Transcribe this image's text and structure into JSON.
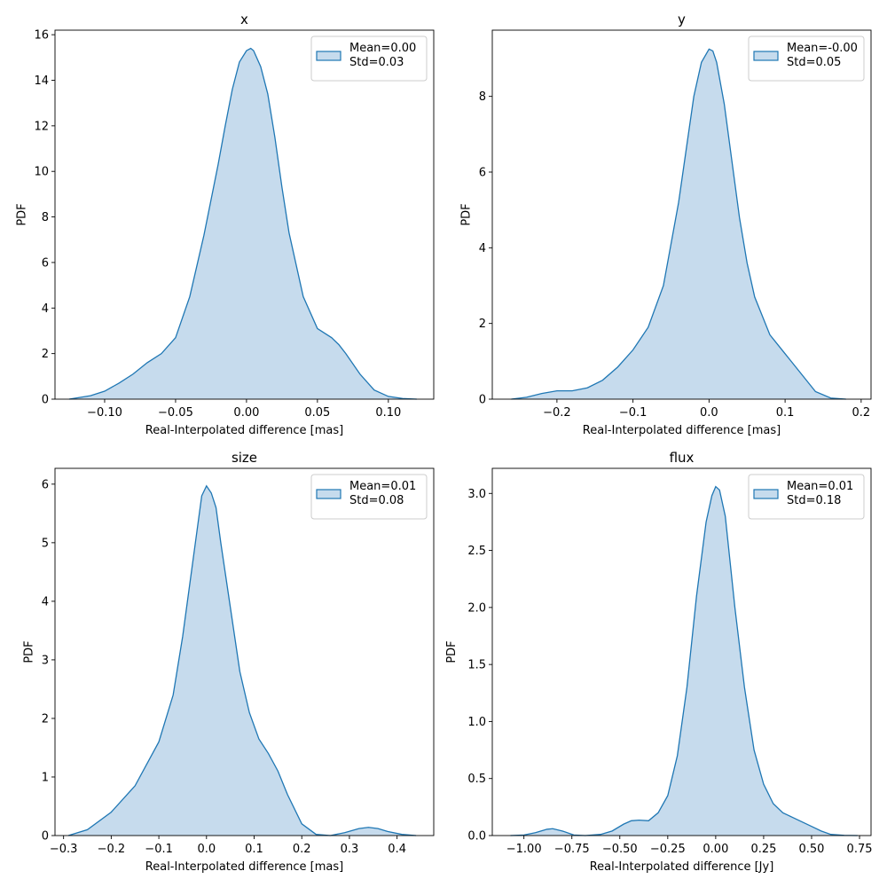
{
  "colors": {
    "line": "#1f77b4",
    "fill": "#c6dbed",
    "axes": "#000000"
  },
  "chart_data": [
    {
      "type": "area",
      "title": "x",
      "xlabel": "Real-Interpolated difference [mas]",
      "ylabel": "PDF",
      "xlim": [
        -0.135,
        0.132
      ],
      "ylim": [
        0,
        16.2
      ],
      "xticks": [
        -0.1,
        -0.05,
        0.0,
        0.05,
        0.1
      ],
      "xtick_labels": [
        "−0.10",
        "−0.05",
        "0.00",
        "0.05",
        "0.10"
      ],
      "yticks": [
        0,
        2,
        4,
        6,
        8,
        10,
        12,
        14,
        16
      ],
      "ytick_labels": [
        "0",
        "2",
        "4",
        "6",
        "8",
        "10",
        "12",
        "14",
        "16"
      ],
      "legend": {
        "position": "upper-right",
        "lines": [
          "Mean=0.00",
          "Std=0.03"
        ]
      },
      "series": [
        {
          "x": [
            -0.125,
            -0.11,
            -0.1,
            -0.09,
            -0.08,
            -0.07,
            -0.06,
            -0.05,
            -0.04,
            -0.03,
            -0.02,
            -0.015,
            -0.01,
            -0.005,
            0.0,
            0.003,
            0.005,
            0.01,
            0.015,
            0.02,
            0.025,
            0.03,
            0.04,
            0.05,
            0.06,
            0.065,
            0.07,
            0.08,
            0.09,
            0.1,
            0.11,
            0.12
          ],
          "y": [
            0.0,
            0.15,
            0.35,
            0.7,
            1.1,
            1.6,
            2.0,
            2.7,
            4.5,
            7.2,
            10.3,
            12.0,
            13.6,
            14.8,
            15.3,
            15.4,
            15.3,
            14.6,
            13.4,
            11.5,
            9.3,
            7.3,
            4.5,
            3.1,
            2.7,
            2.4,
            2.0,
            1.1,
            0.4,
            0.12,
            0.03,
            0.0
          ]
        }
      ]
    },
    {
      "type": "area",
      "title": "y",
      "xlabel": "Real-Interpolated difference [mas]",
      "ylabel": "PDF",
      "xlim": [
        -0.285,
        0.213
      ],
      "ylim": [
        0,
        9.75
      ],
      "xticks": [
        -0.2,
        -0.1,
        0.0,
        0.1,
        0.2
      ],
      "xtick_labels": [
        "−0.2",
        "−0.1",
        "0.0",
        "0.1",
        "0.2"
      ],
      "yticks": [
        0,
        2,
        4,
        6,
        8
      ],
      "ytick_labels": [
        "0",
        "2",
        "4",
        "6",
        "8"
      ],
      "legend": {
        "position": "upper-right",
        "lines": [
          "Mean=-0.00",
          "Std=0.05"
        ]
      },
      "series": [
        {
          "x": [
            -0.26,
            -0.24,
            -0.22,
            -0.2,
            -0.18,
            -0.16,
            -0.14,
            -0.12,
            -0.1,
            -0.08,
            -0.06,
            -0.04,
            -0.03,
            -0.02,
            -0.01,
            0.0,
            0.005,
            0.01,
            0.02,
            0.03,
            0.04,
            0.05,
            0.06,
            0.08,
            0.1,
            0.12,
            0.14,
            0.16,
            0.18
          ],
          "y": [
            0.0,
            0.05,
            0.15,
            0.22,
            0.22,
            0.3,
            0.5,
            0.85,
            1.3,
            1.9,
            3.0,
            5.2,
            6.6,
            8.0,
            8.9,
            9.25,
            9.2,
            8.9,
            7.8,
            6.3,
            4.8,
            3.6,
            2.7,
            1.7,
            1.2,
            0.7,
            0.2,
            0.03,
            0.0
          ]
        }
      ]
    },
    {
      "type": "area",
      "title": "size",
      "xlabel": "Real-Interpolated difference [mas]",
      "ylabel": "PDF",
      "xlim": [
        -0.318,
        0.477
      ],
      "ylim": [
        0,
        6.27
      ],
      "xticks": [
        -0.3,
        -0.2,
        -0.1,
        0.0,
        0.1,
        0.2,
        0.3,
        0.4
      ],
      "xtick_labels": [
        "−0.3",
        "−0.2",
        "−0.1",
        "0.0",
        "0.1",
        "0.2",
        "0.3",
        "0.4"
      ],
      "yticks": [
        0,
        1,
        2,
        3,
        4,
        5,
        6
      ],
      "ytick_labels": [
        "0",
        "1",
        "2",
        "3",
        "4",
        "5",
        "6"
      ],
      "legend": {
        "position": "upper-right",
        "lines": [
          "Mean=0.01",
          "Std=0.08"
        ]
      },
      "series": [
        {
          "x": [
            -0.29,
            -0.25,
            -0.2,
            -0.15,
            -0.1,
            -0.07,
            -0.05,
            -0.03,
            -0.02,
            -0.01,
            0.0,
            0.01,
            0.02,
            0.03,
            0.05,
            0.07,
            0.09,
            0.11,
            0.13,
            0.15,
            0.17,
            0.2,
            0.23,
            0.26,
            0.29,
            0.32,
            0.34,
            0.36,
            0.38,
            0.41,
            0.44
          ],
          "y": [
            0.0,
            0.1,
            0.4,
            0.85,
            1.6,
            2.4,
            3.4,
            4.6,
            5.2,
            5.8,
            5.97,
            5.85,
            5.6,
            5.0,
            3.9,
            2.8,
            2.1,
            1.65,
            1.4,
            1.1,
            0.7,
            0.2,
            0.02,
            0.0,
            0.05,
            0.12,
            0.14,
            0.12,
            0.07,
            0.02,
            0.0
          ]
        }
      ]
    },
    {
      "type": "area",
      "title": "flux",
      "xlabel": "Real-Interpolated difference [Jy]",
      "ylabel": "PDF",
      "xlim": [
        -1.165,
        0.81
      ],
      "ylim": [
        0,
        3.22
      ],
      "xticks": [
        -1.0,
        -0.75,
        -0.5,
        -0.25,
        0.0,
        0.25,
        0.5,
        0.75
      ],
      "xtick_labels": [
        "−1.00",
        "−0.75",
        "−0.50",
        "−0.25",
        "0.00",
        "0.25",
        "0.50",
        "0.75"
      ],
      "yticks": [
        0,
        0.5,
        1.0,
        1.5,
        2.0,
        2.5,
        3.0
      ],
      "ytick_labels": [
        "0.0",
        "0.5",
        "1.0",
        "1.5",
        "2.0",
        "2.5",
        "3.0"
      ],
      "legend": {
        "position": "upper-right",
        "lines": [
          "Mean=0.01",
          "Std=0.18"
        ]
      },
      "series": [
        {
          "x": [
            -1.07,
            -1.0,
            -0.94,
            -0.88,
            -0.85,
            -0.8,
            -0.74,
            -0.68,
            -0.6,
            -0.54,
            -0.48,
            -0.44,
            -0.4,
            -0.35,
            -0.3,
            -0.25,
            -0.2,
            -0.15,
            -0.1,
            -0.05,
            -0.02,
            0.0,
            0.02,
            0.05,
            0.1,
            0.15,
            0.2,
            0.25,
            0.3,
            0.35,
            0.4,
            0.45,
            0.5,
            0.55,
            0.6,
            0.67,
            0.74
          ],
          "y": [
            0.0,
            0.005,
            0.025,
            0.055,
            0.06,
            0.04,
            0.005,
            0.0,
            0.01,
            0.04,
            0.1,
            0.13,
            0.135,
            0.13,
            0.2,
            0.35,
            0.7,
            1.3,
            2.1,
            2.75,
            2.98,
            3.06,
            3.03,
            2.8,
            2.0,
            1.3,
            0.75,
            0.45,
            0.28,
            0.2,
            0.16,
            0.12,
            0.08,
            0.04,
            0.01,
            0.002,
            0.0
          ]
        }
      ]
    }
  ]
}
